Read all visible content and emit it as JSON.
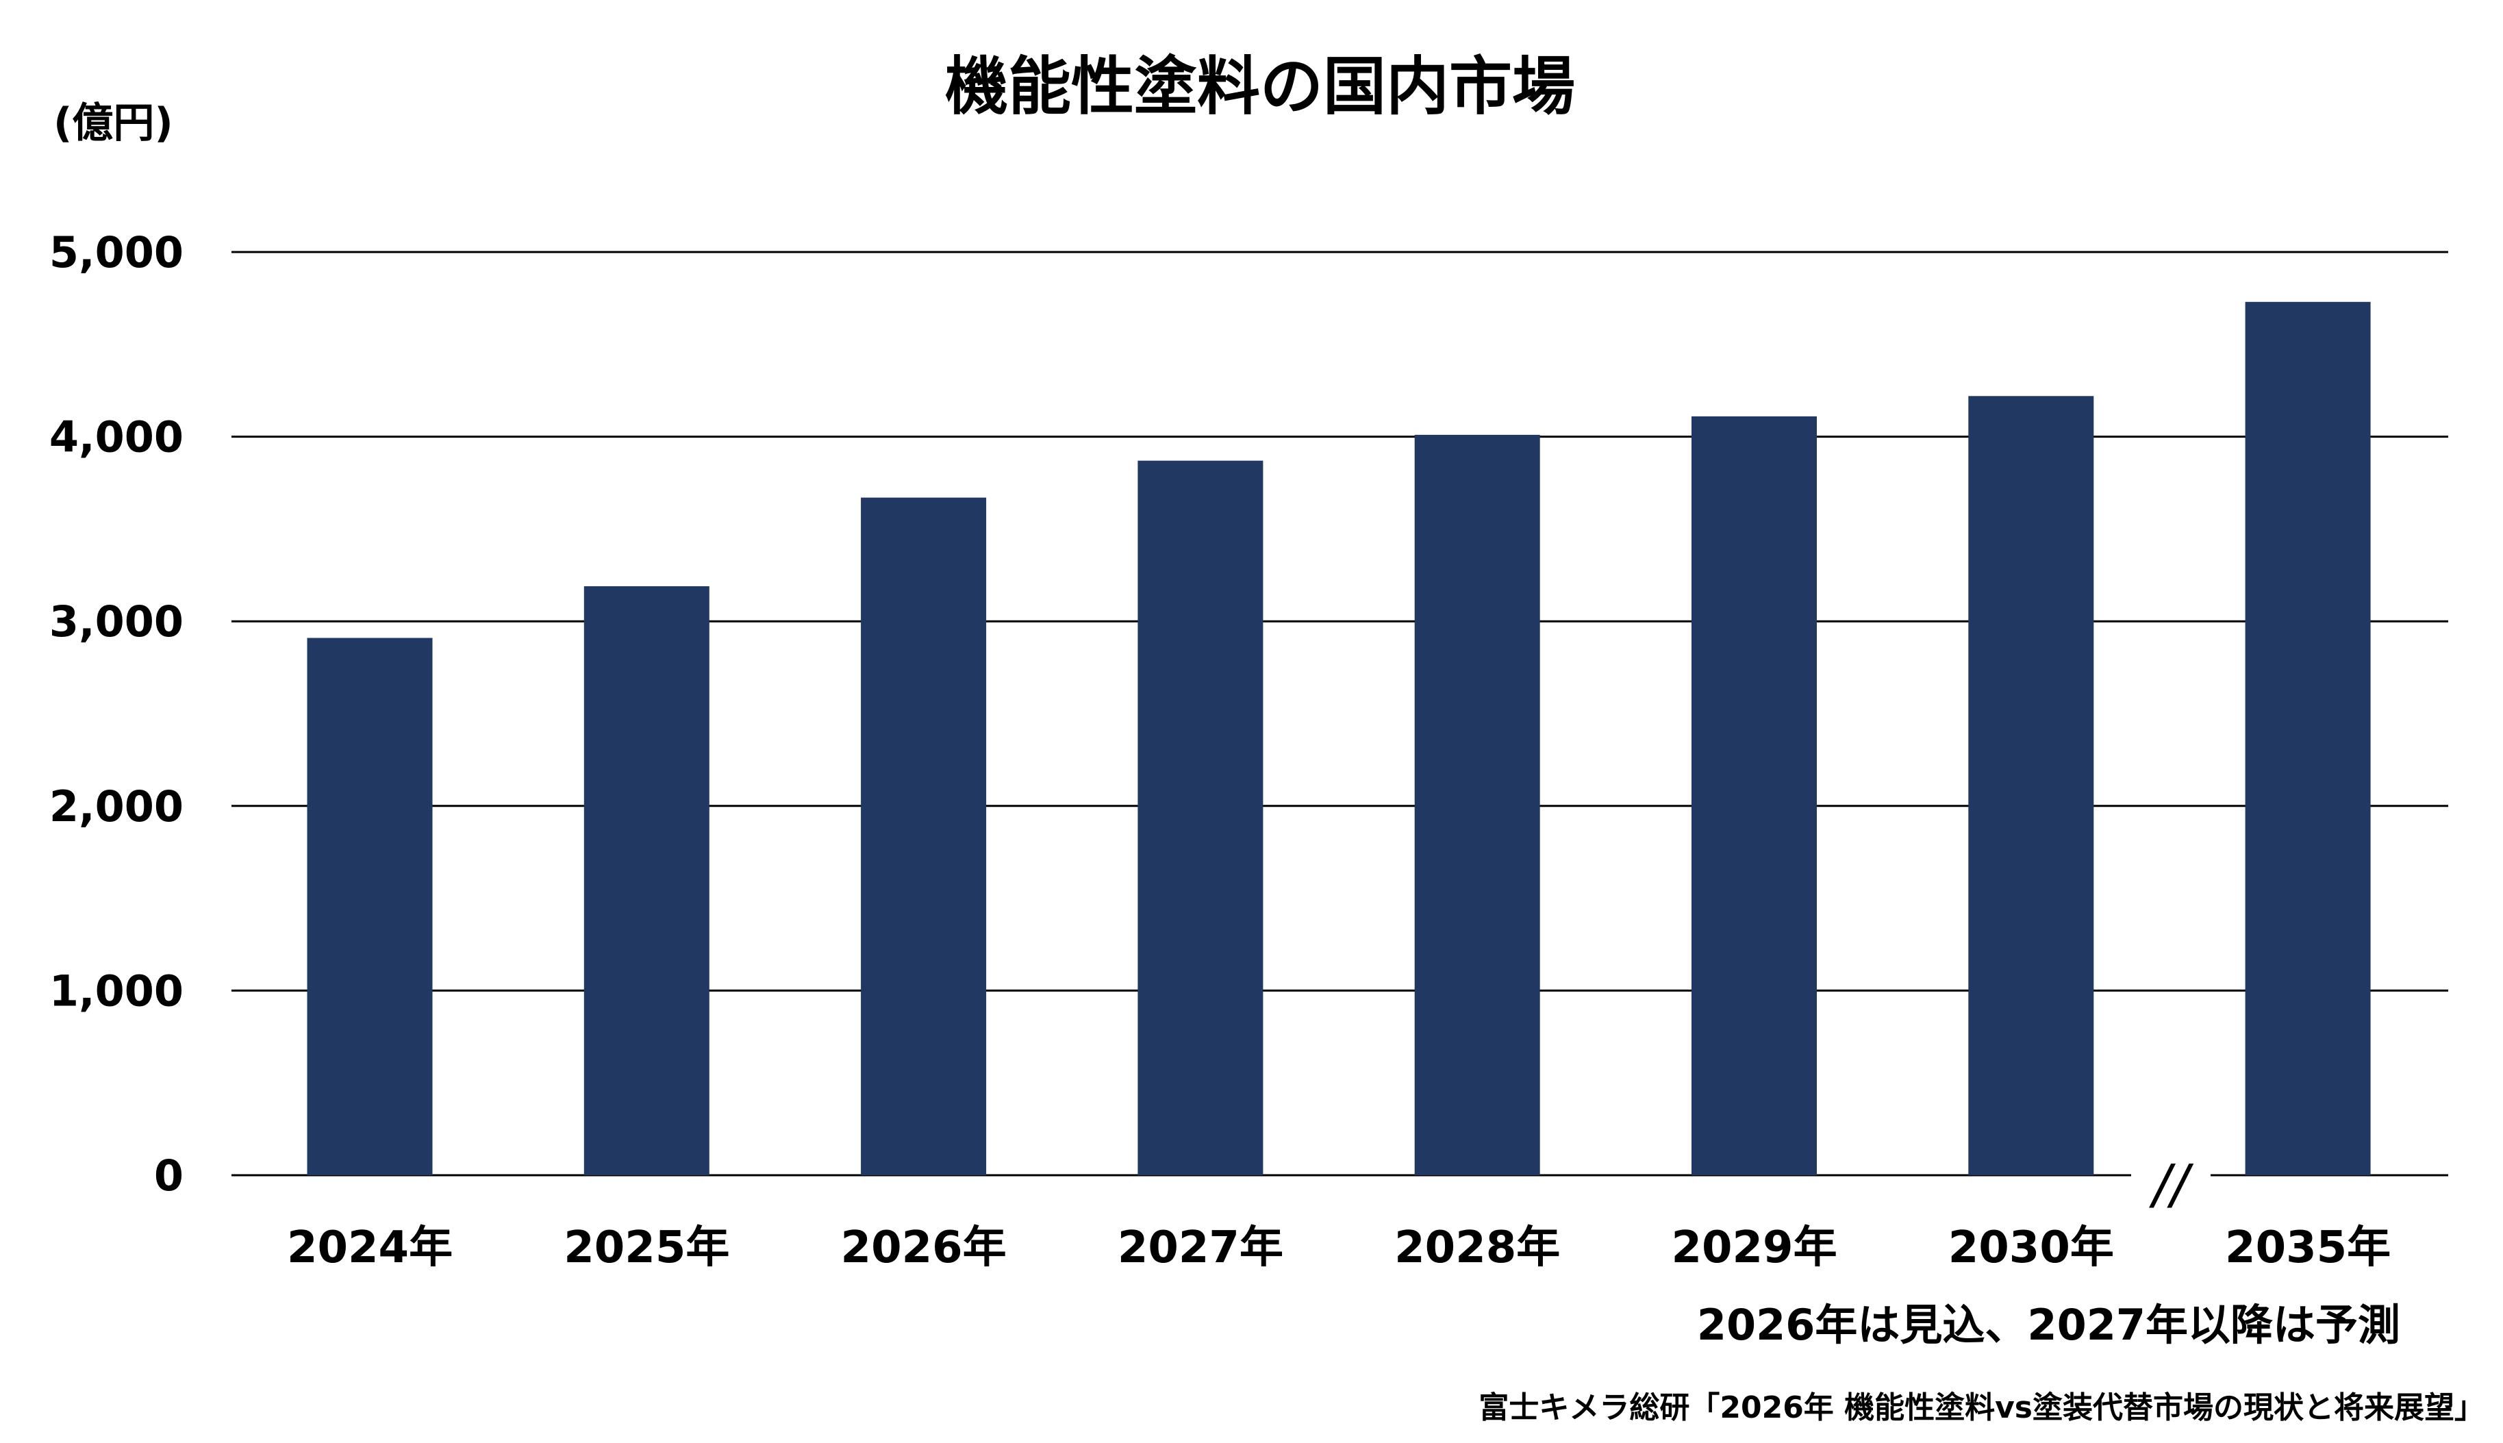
{
  "chart_data": {
    "type": "bar",
    "title": "機能性塗料の国内市場",
    "ylabel": "(億円)",
    "xlabel": "",
    "categories": [
      "2024年",
      "2025年",
      "2026年",
      "2027年",
      "2028年",
      "2029年",
      "2030年",
      "2035年"
    ],
    "values": [
      2910,
      3190,
      3670,
      3870,
      4010,
      4110,
      4220,
      4730
    ],
    "ylim": [
      0,
      5000
    ],
    "yticks": [
      0,
      1000,
      2000,
      3000,
      4000,
      5000
    ],
    "ytick_labels": [
      "0",
      "1,000",
      "2,000",
      "3,000",
      "4,000",
      "5,000"
    ],
    "grid": true,
    "axis_break_mark": "//",
    "bar_color": "#213862",
    "grid_color": "#000000"
  },
  "note": "2026年は見込、2027年以降は予測",
  "source": "富士キメラ総研「2026年 機能性塗料vs塗装代替市場の現状と将来展望」"
}
